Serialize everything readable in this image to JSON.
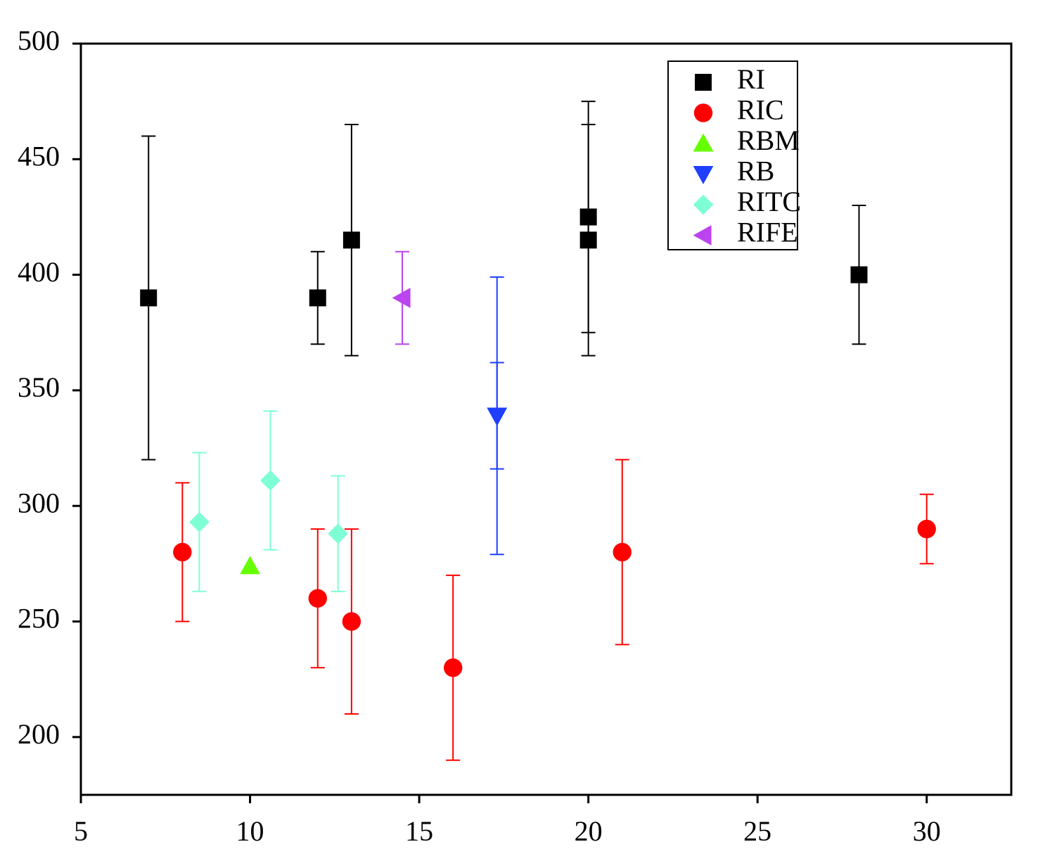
{
  "chart_data": {
    "type": "scatter",
    "xlim": [
      5,
      32.5
    ],
    "xticks": [
      5,
      10,
      15,
      20,
      25,
      30
    ],
    "ylim": [
      175,
      500
    ],
    "yticks": [
      200,
      250,
      300,
      350,
      400,
      450,
      500
    ],
    "legend": "upper right",
    "series": [
      {
        "name": "RI",
        "color": "#000000",
        "marker": "square",
        "x": [
          7,
          12,
          13,
          20,
          20,
          28
        ],
        "values": [
          390,
          390,
          415,
          425,
          415,
          400
        ],
        "errors": [
          70,
          20,
          50,
          50,
          50,
          30
        ]
      },
      {
        "name": "RIC",
        "color": "#ff0000",
        "marker": "circle",
        "x": [
          8,
          12,
          13,
          16,
          21,
          30
        ],
        "values": [
          280,
          260,
          250,
          230,
          280,
          290
        ],
        "errors": [
          30,
          30,
          40,
          40,
          40,
          15
        ]
      },
      {
        "name": "RBM",
        "color": "#66ff00",
        "marker": "triangle-up",
        "x": [
          10
        ],
        "values": [
          274
        ]
      },
      {
        "name": "RB",
        "color": "#1f3fff",
        "marker": "triangle-down",
        "x": [
          17.3,
          17.3
        ],
        "values": [
          339,
          339
        ],
        "errors": [
          60,
          23
        ]
      },
      {
        "name": "RITC",
        "color": "#7fffd4",
        "marker": "diamond",
        "x": [
          8.5,
          10.6,
          12.6
        ],
        "values": [
          293,
          311,
          288
        ],
        "errors": [
          30,
          30,
          25
        ]
      },
      {
        "name": "RIFE",
        "color": "#bb44ee",
        "marker": "triangle-left",
        "x": [
          14.5
        ],
        "values": [
          390
        ],
        "errors": [
          20
        ]
      }
    ]
  }
}
